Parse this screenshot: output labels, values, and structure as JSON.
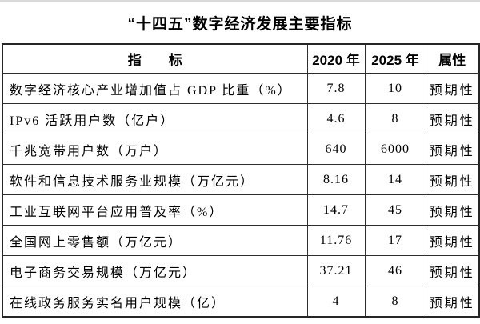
{
  "page": {
    "title": "“十四五”数字经济发展主要指标"
  },
  "table": {
    "headers": {
      "indicator": "指　　标",
      "y2020": "2020 年",
      "y2025": "2025 年",
      "attribute": "属性"
    },
    "rows": [
      {
        "indicator": "数字经济核心产业增加值占 GDP 比重（%）",
        "y2020": "7.8",
        "y2025": "10",
        "attribute": "预期性"
      },
      {
        "indicator": "IPv6 活跃用户数（亿户）",
        "y2020": "4.6",
        "y2025": "8",
        "attribute": "预期性"
      },
      {
        "indicator": "千兆宽带用户数（万户）",
        "y2020": "640",
        "y2025": "6000",
        "attribute": "预期性"
      },
      {
        "indicator": "软件和信息技术服务业规模（万亿元）",
        "y2020": "8.16",
        "y2025": "14",
        "attribute": "预期性"
      },
      {
        "indicator": "工业互联网平台应用普及率（%）",
        "y2020": "14.7",
        "y2025": "45",
        "attribute": "预期性"
      },
      {
        "indicator": "全国网上零售额（万亿元）",
        "y2020": "11.76",
        "y2025": "17",
        "attribute": "预期性"
      },
      {
        "indicator": "电子商务交易规模（万亿元）",
        "y2020": "37.21",
        "y2025": "46",
        "attribute": "预期性"
      },
      {
        "indicator": "在线政务服务实名用户规模（亿）",
        "y2020": "4",
        "y2025": "8",
        "attribute": "预期性"
      }
    ]
  },
  "chart_data": {
    "type": "table",
    "title": "“十四五”数字经济发展主要指标",
    "columns": [
      "指标",
      "2020 年",
      "2025 年",
      "属性"
    ],
    "rows": [
      [
        "数字经济核心产业增加值占 GDP 比重（%）",
        7.8,
        10,
        "预期性"
      ],
      [
        "IPv6 活跃用户数（亿户）",
        4.6,
        8,
        "预期性"
      ],
      [
        "千兆宽带用户数（万户）",
        640,
        6000,
        "预期性"
      ],
      [
        "软件和信息技术服务业规模（万亿元）",
        8.16,
        14,
        "预期性"
      ],
      [
        "工业互联网平台应用普及率（%）",
        14.7,
        45,
        "预期性"
      ],
      [
        "全国网上零售额（万亿元）",
        11.76,
        17,
        "预期性"
      ],
      [
        "电子商务交易规模（万亿元）",
        37.21,
        46,
        "预期性"
      ],
      [
        "在线政务服务实名用户规模（亿）",
        4,
        8,
        "预期性"
      ]
    ]
  },
  "colors": {
    "background": "#ffffff",
    "text": "#000000",
    "border": "#2e2e2e",
    "top_strip": "#d9d9d9"
  }
}
